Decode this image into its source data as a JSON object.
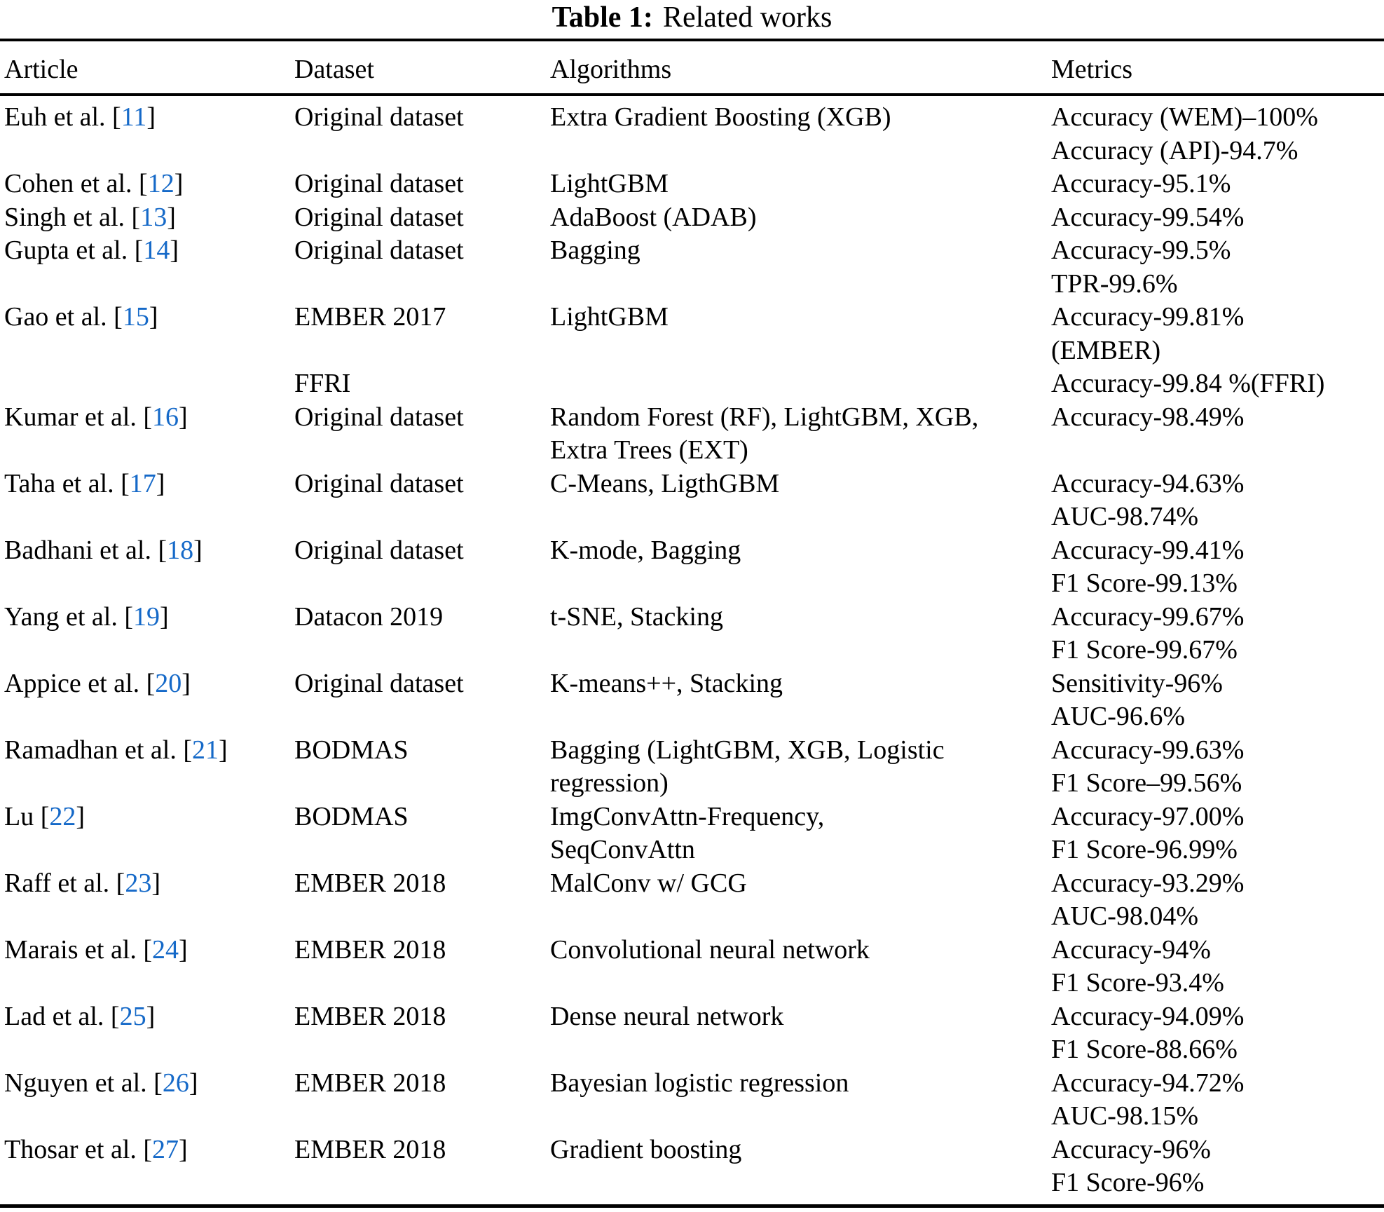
{
  "title": {
    "label": "Table 1:",
    "text": "Related works"
  },
  "columns": {
    "article": "Article",
    "dataset": "Dataset",
    "algorithms": "Algorithms",
    "metrics": "Metrics"
  },
  "colors": {
    "text": "#000000",
    "citation_link": "#1569c8"
  },
  "rows": [
    {
      "author": "Euh et al.",
      "ref": "11",
      "dataset": [
        "Original dataset"
      ],
      "algorithms": [
        "Extra Gradient Boosting (XGB)"
      ],
      "metrics": [
        "Accuracy (WEM)–100%",
        "Accuracy (API)-94.7%"
      ]
    },
    {
      "author": "Cohen et al.",
      "ref": "12",
      "dataset": [
        "Original dataset"
      ],
      "algorithms": [
        "LightGBM"
      ],
      "metrics": [
        "Accuracy-95.1%"
      ]
    },
    {
      "author": "Singh et al.",
      "ref": "13",
      "dataset": [
        "Original dataset"
      ],
      "algorithms": [
        "AdaBoost (ADAB)"
      ],
      "metrics": [
        "Accuracy-99.54%"
      ]
    },
    {
      "author": "Gupta et al.",
      "ref": "14",
      "dataset": [
        "Original dataset"
      ],
      "algorithms": [
        "Bagging"
      ],
      "metrics": [
        "Accuracy-99.5%",
        "TPR-99.6%"
      ]
    },
    {
      "author": "Gao et al.",
      "ref": "15",
      "dataset": [
        "EMBER 2017",
        "",
        "FFRI"
      ],
      "algorithms": [
        "LightGBM"
      ],
      "metrics": [
        "Accuracy-99.81%",
        "(EMBER)",
        "Accuracy-99.84 %(FFRI)"
      ]
    },
    {
      "author": "Kumar et al.",
      "ref": "16",
      "dataset": [
        "Original dataset"
      ],
      "algorithms": [
        "Random Forest (RF), LightGBM, XGB,",
        "Extra Trees (EXT)"
      ],
      "metrics": [
        "Accuracy-98.49%"
      ]
    },
    {
      "author": "Taha et al.",
      "ref": "17",
      "dataset": [
        "Original dataset"
      ],
      "algorithms": [
        "C-Means, LigthGBM"
      ],
      "metrics": [
        "Accuracy-94.63%",
        "AUC-98.74%"
      ]
    },
    {
      "author": "Badhani et al.",
      "ref": "18",
      "dataset": [
        "Original dataset"
      ],
      "algorithms": [
        "K-mode, Bagging"
      ],
      "metrics": [
        "Accuracy-99.41%",
        "F1 Score-99.13%"
      ]
    },
    {
      "author": "Yang et al.",
      "ref": "19",
      "dataset": [
        "Datacon 2019"
      ],
      "algorithms": [
        "t-SNE, Stacking"
      ],
      "metrics": [
        "Accuracy-99.67%",
        "F1 Score-99.67%"
      ]
    },
    {
      "author": "Appice et al.",
      "ref": "20",
      "dataset": [
        "Original dataset"
      ],
      "algorithms": [
        "K-means++, Stacking"
      ],
      "metrics": [
        "Sensitivity-96%",
        "AUC-96.6%"
      ]
    },
    {
      "author": "Ramadhan et al.",
      "ref": "21",
      "dataset": [
        "BODMAS"
      ],
      "algorithms": [
        "Bagging (LightGBM, XGB, Logistic",
        "regression)"
      ],
      "metrics": [
        "Accuracy-99.63%",
        "F1 Score–99.56%"
      ]
    },
    {
      "author": "Lu",
      "ref": "22",
      "dataset": [
        "BODMAS"
      ],
      "algorithms": [
        "ImgConvAttn-Frequency,",
        "SeqConvAttn"
      ],
      "metrics": [
        "Accuracy-97.00%",
        "F1 Score-96.99%"
      ]
    },
    {
      "author": "Raff et al.",
      "ref": "23",
      "dataset": [
        "EMBER 2018"
      ],
      "algorithms": [
        "MalConv w/ GCG"
      ],
      "metrics": [
        "Accuracy-93.29%",
        "AUC-98.04%"
      ]
    },
    {
      "author": "Marais et al.",
      "ref": "24",
      "dataset": [
        "EMBER 2018"
      ],
      "algorithms": [
        "Convolutional neural network"
      ],
      "metrics": [
        "Accuracy-94%",
        "F1 Score-93.4%"
      ]
    },
    {
      "author": "Lad et al.",
      "ref": "25",
      "dataset": [
        "EMBER 2018"
      ],
      "algorithms": [
        "Dense neural network"
      ],
      "metrics": [
        "Accuracy-94.09%",
        "F1 Score-88.66%"
      ]
    },
    {
      "author": "Nguyen et al.",
      "ref": "26",
      "dataset": [
        "EMBER 2018"
      ],
      "algorithms": [
        "Bayesian logistic regression"
      ],
      "metrics": [
        "Accuracy-94.72%",
        "AUC-98.15%"
      ]
    },
    {
      "author": "Thosar et al.",
      "ref": "27",
      "dataset": [
        "EMBER 2018"
      ],
      "algorithms": [
        "Gradient boosting"
      ],
      "metrics": [
        "Accuracy-96%",
        "F1 Score-96%"
      ]
    }
  ]
}
